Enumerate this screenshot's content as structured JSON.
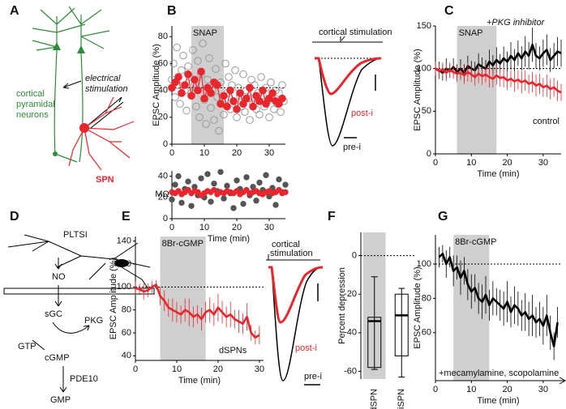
{
  "diagrams": {
    "A": {
      "panel": "A",
      "neurons_label": [
        "cortical",
        "pyramidal",
        "neurons"
      ],
      "stimulation_label": [
        "electrical",
        "stimulation"
      ],
      "spn_label": "SPN"
    },
    "D": {
      "panel": "D",
      "cell": "PLTSI",
      "nodes": [
        "NO",
        "sGC",
        "PKG",
        "GTP",
        "cGMP",
        "PDE10",
        "GMP"
      ]
    }
  },
  "insets": {
    "B": {
      "title": "cortical stimulation",
      "labels": [
        "post-i",
        "pre-i"
      ]
    },
    "E": {
      "title": [
        "cortical",
        "stimulation"
      ],
      "labels": [
        "post-i",
        "pre-i"
      ]
    }
  },
  "chart_data": [
    {
      "type": "scatter",
      "panel": "B",
      "ylabel": "EPSC Amplitude (%)",
      "xlim": [
        0,
        35
      ],
      "xticks": [
        0,
        10,
        20,
        30
      ],
      "ylim": [
        0,
        88
      ],
      "yticks": [
        0,
        20,
        40,
        60,
        80
      ],
      "hline": 42,
      "shade": {
        "label": "SNAP",
        "x": [
          6,
          16
        ]
      },
      "series": [
        {
          "color": "#999999",
          "marker": "open",
          "line": false,
          "x": [
            0,
            0.5,
            1,
            1.5,
            2,
            2.5,
            3,
            3.5,
            4,
            4.5,
            5,
            5.5,
            6,
            6.5,
            7,
            7.5,
            8,
            8.5,
            9,
            9.5,
            10,
            10.5,
            11,
            11.5,
            12,
            12.5,
            13,
            13.5,
            14,
            14.5,
            15,
            15.5,
            16,
            16.5,
            17,
            17.5,
            18,
            18.5,
            19,
            19.5,
            20,
            20.5,
            21,
            21.5,
            22,
            22.5,
            23,
            23.5,
            24,
            24.5,
            25,
            25.5,
            26,
            26.5,
            27,
            27.5,
            28,
            28.5,
            29,
            29.5,
            30,
            30.5,
            31,
            31.5,
            32,
            32.5,
            33,
            33.5,
            34,
            34.5
          ],
          "values": [
            48,
            60,
            35,
            72,
            44,
            30,
            55,
            66,
            40,
            25,
            58,
            50,
            38,
            70,
            45,
            28,
            62,
            20,
            52,
            75,
            33,
            15,
            48,
            64,
            27,
            40,
            18,
            56,
            35,
            10,
            46,
            30,
            22,
            60,
            38,
            50,
            26,
            44,
            32,
            55,
            20,
            42,
            36,
            28,
            52,
            24,
            40,
            34,
            18,
            48,
            30,
            44,
            26,
            38,
            22,
            50,
            36,
            28,
            42,
            32,
            20,
            46,
            34,
            26,
            40,
            30,
            38,
            24,
            44,
            32
          ]
        },
        {
          "color": "#e8262d",
          "marker": "filled",
          "line": true,
          "x": [
            0,
            1,
            2,
            3,
            4,
            5,
            6,
            7,
            8,
            9,
            10,
            11,
            12,
            13,
            14,
            15,
            16,
            17,
            18,
            19,
            20,
            21,
            22,
            23,
            24,
            25,
            26,
            27,
            28,
            29,
            30,
            31,
            32,
            33,
            34
          ],
          "values": [
            42,
            46,
            50,
            38,
            44,
            52,
            36,
            48,
            40,
            54,
            34,
            42,
            38,
            46,
            44,
            30,
            36,
            28,
            40,
            32,
            26,
            38,
            30,
            34,
            42,
            28,
            36,
            32,
            40,
            30,
            34,
            38,
            32,
            30,
            34
          ]
        }
      ]
    },
    {
      "type": "line",
      "ylabel": "MΩ",
      "xlabel": "Time (min)",
      "xlim": [
        0,
        35
      ],
      "xticks": [
        0,
        10,
        20,
        30
      ],
      "ylim": [
        0,
        45
      ],
      "yticks": [
        0,
        20,
        40
      ],
      "series": [
        {
          "color": "#555555",
          "marker": "filled",
          "line": false,
          "x": [
            0,
            1,
            2,
            3,
            4,
            5,
            6,
            7,
            8,
            9,
            10,
            11,
            12,
            13,
            14,
            15,
            16,
            17,
            18,
            19,
            20,
            21,
            22,
            23,
            24,
            25,
            26,
            27,
            28,
            29,
            30,
            31,
            32,
            33,
            34,
            35
          ],
          "values": [
            18,
            32,
            40,
            15,
            28,
            35,
            12,
            30,
            22,
            38,
            20,
            42,
            16,
            33,
            26,
            44,
            19,
            31,
            24,
            10,
            36,
            28,
            14,
            39,
            22,
            30,
            17,
            34,
            27,
            41,
            21,
            29,
            13,
            37,
            25,
            32
          ]
        },
        {
          "color": "#e8262d",
          "marker": "filled",
          "line": true,
          "x": [
            0,
            1,
            2,
            3,
            4,
            5,
            6,
            7,
            8,
            9,
            10,
            11,
            12,
            13,
            14,
            15,
            16,
            17,
            18,
            19,
            20,
            21,
            22,
            23,
            24,
            25,
            26,
            27,
            28,
            29,
            30,
            31,
            32,
            33,
            34,
            35
          ],
          "values": [
            25,
            24,
            26,
            23,
            25,
            27,
            24,
            26,
            25,
            22,
            24,
            26,
            25,
            27,
            23,
            25,
            24,
            26,
            25,
            24,
            26,
            23,
            25,
            27,
            24,
            25,
            26,
            24,
            23,
            25,
            26,
            24,
            25,
            27,
            24,
            25
          ]
        }
      ]
    },
    {
      "type": "line",
      "panel": "C",
      "ylabel": "EPSC Amplitude (%)",
      "xlabel": "Time (min)",
      "xlim": [
        0,
        35
      ],
      "xticks": [
        0,
        10,
        20,
        30
      ],
      "ylim": [
        0,
        150
      ],
      "yticks": [
        0,
        50,
        100,
        150
      ],
      "hline": 100,
      "shade": {
        "label": "SNAP",
        "x": [
          6,
          17
        ]
      },
      "series": [
        {
          "name": "+PKG inhibitor",
          "color": "#000000",
          "line": true,
          "x": [
            0,
            1,
            2,
            3,
            4,
            5,
            6,
            7,
            8,
            9,
            10,
            11,
            12,
            13,
            14,
            15,
            16,
            17,
            18,
            19,
            20,
            21,
            22,
            23,
            24,
            25,
            26,
            27,
            28,
            29,
            30,
            31,
            32,
            33,
            34,
            35
          ],
          "values": [
            100,
            98,
            95,
            100,
            97,
            102,
            96,
            100,
            95,
            103,
            100,
            98,
            105,
            102,
            100,
            108,
            104,
            110,
            106,
            112,
            108,
            115,
            110,
            118,
            112,
            120,
            115,
            128,
            115,
            112,
            118,
            122,
            110,
            115,
            120,
            118
          ],
          "errors": [
            8,
            10,
            9,
            12,
            8,
            10,
            9,
            11,
            10,
            12,
            9,
            10,
            13,
            11,
            10,
            14,
            12,
            15,
            11,
            14,
            12,
            16,
            13,
            15,
            14,
            18,
            16,
            20,
            15,
            14,
            16,
            18,
            14,
            15,
            17,
            16
          ]
        },
        {
          "name": "control",
          "color": "#e8262d",
          "line": true,
          "x": [
            0,
            1,
            2,
            3,
            4,
            5,
            6,
            7,
            8,
            9,
            10,
            11,
            12,
            13,
            14,
            15,
            16,
            17,
            18,
            19,
            20,
            21,
            22,
            23,
            24,
            25,
            26,
            27,
            28,
            29,
            30,
            31,
            32,
            33,
            34,
            35
          ],
          "values": [
            100,
            97,
            99,
            95,
            98,
            96,
            94,
            95,
            92,
            96,
            93,
            90,
            94,
            91,
            93,
            90,
            88,
            92,
            89,
            90,
            86,
            88,
            85,
            87,
            84,
            86,
            82,
            84,
            80,
            82,
            78,
            80,
            76,
            78,
            74,
            72
          ],
          "errors": [
            8,
            9,
            8,
            10,
            9,
            8,
            10,
            9,
            10,
            11,
            9,
            10,
            11,
            10,
            9,
            12,
            10,
            11,
            10,
            12,
            11,
            10,
            12,
            11,
            13,
            12,
            11,
            12,
            13,
            12,
            11,
            13,
            12,
            11,
            12,
            10
          ]
        }
      ]
    },
    {
      "type": "line",
      "panel": "E",
      "ylabel": "EPSC Amplitude (%)",
      "xlabel": "Time (min)",
      "annotation": "dSPNs",
      "xlim": [
        0,
        31
      ],
      "xticks": [
        0,
        10,
        20,
        30
      ],
      "ylim": [
        36,
        144
      ],
      "yticks": [
        40,
        60,
        80,
        100,
        120,
        140
      ],
      "hline": 100,
      "shade": {
        "label": "8Br-cGMP",
        "x": [
          6,
          17
        ]
      },
      "series": [
        {
          "color": "#e8262d",
          "line": true,
          "x": [
            0,
            1,
            2,
            3,
            4,
            5,
            6,
            7,
            8,
            9,
            10,
            11,
            12,
            13,
            14,
            15,
            16,
            17,
            18,
            19,
            20,
            21,
            22,
            23,
            24,
            25,
            26,
            27,
            28,
            29,
            30
          ],
          "values": [
            99,
            98,
            96,
            97,
            100,
            102,
            92,
            88,
            82,
            80,
            78,
            76,
            80,
            78,
            74,
            76,
            72,
            78,
            80,
            76,
            82,
            78,
            74,
            76,
            72,
            70,
            68,
            74,
            60,
            56,
            58
          ],
          "errors": [
            6,
            5,
            7,
            6,
            5,
            4,
            8,
            9,
            8,
            10,
            9,
            8,
            10,
            12,
            9,
            8,
            10,
            9,
            11,
            10,
            12,
            10,
            9,
            11,
            8,
            10,
            9,
            12,
            7,
            6,
            8
          ]
        }
      ]
    },
    {
      "type": "box",
      "panel": "F",
      "ylabel": "Percent depression",
      "categories": [
        "dSPN",
        "iSPN"
      ],
      "shaded": [
        true,
        false
      ],
      "ylim": [
        -64,
        12
      ],
      "yticks": [
        0,
        -20,
        -40,
        -60
      ],
      "hline": 0,
      "stats": [
        {
          "min": -59,
          "q1": -58,
          "median": -34,
          "q3": -32,
          "max": -11
        },
        {
          "min": -63,
          "q1": -52,
          "median": -31,
          "q3": -20,
          "max": -17
        }
      ]
    },
    {
      "type": "line",
      "panel": "G",
      "ylabel": "EPSC Amplitude (%)",
      "xlabel": "Time (min)",
      "annotation": "+mecamylamine, scopolamine",
      "xlim": [
        0,
        35
      ],
      "xticks": [
        0,
        10,
        20,
        30
      ],
      "ylim": [
        32,
        117
      ],
      "yticks": [
        60,
        80,
        100
      ],
      "hline": 100,
      "shade": {
        "label": "8Br-cGMP",
        "x": [
          5,
          15
        ]
      },
      "series": [
        {
          "color": "#000000",
          "line": true,
          "x": [
            1,
            2,
            3,
            4,
            5,
            6,
            7,
            8,
            9,
            10,
            11,
            12,
            13,
            14,
            15,
            16,
            17,
            18,
            19,
            20,
            21,
            22,
            23,
            24,
            25,
            26,
            27,
            28,
            29,
            30,
            31,
            32,
            33,
            34
          ],
          "values": [
            104,
            106,
            100,
            104,
            96,
            98,
            92,
            96,
            88,
            84,
            86,
            80,
            78,
            82,
            76,
            80,
            78,
            76,
            74,
            78,
            72,
            76,
            74,
            70,
            72,
            68,
            70,
            66,
            68,
            64,
            70,
            60,
            52,
            66
          ],
          "errors": [
            6,
            5,
            8,
            6,
            9,
            7,
            10,
            8,
            9,
            10,
            8,
            9,
            10,
            11,
            9,
            10,
            8,
            9,
            10,
            12,
            9,
            11,
            10,
            9,
            11,
            10,
            12,
            9,
            10,
            11,
            12,
            10,
            8,
            9
          ]
        }
      ]
    }
  ]
}
